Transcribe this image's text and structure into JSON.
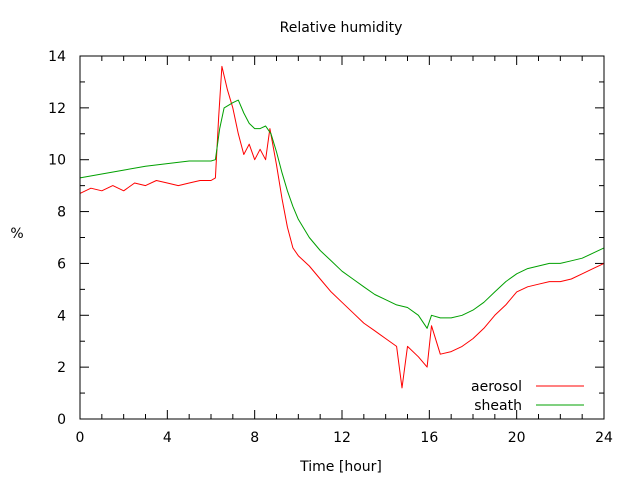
{
  "chart_data": {
    "type": "line",
    "title": "Relative humidity",
    "xlabel": "Time [hour]",
    "ylabel": "%",
    "xlim": [
      0,
      24
    ],
    "ylim": [
      0,
      14
    ],
    "xticks": [
      0,
      4,
      8,
      12,
      16,
      20,
      24
    ],
    "yticks": [
      0,
      2,
      4,
      6,
      8,
      10,
      12,
      14
    ],
    "grid": false,
    "legend_position": "bottom-right",
    "series": [
      {
        "name": "aerosol",
        "color": "#ff0000",
        "points": [
          [
            0.0,
            8.7
          ],
          [
            0.5,
            8.9
          ],
          [
            1.0,
            8.8
          ],
          [
            1.5,
            9.0
          ],
          [
            2.0,
            8.8
          ],
          [
            2.5,
            9.1
          ],
          [
            3.0,
            9.0
          ],
          [
            3.5,
            9.2
          ],
          [
            4.0,
            9.1
          ],
          [
            4.5,
            9.0
          ],
          [
            5.0,
            9.1
          ],
          [
            5.5,
            9.2
          ],
          [
            6.0,
            9.2
          ],
          [
            6.2,
            9.3
          ],
          [
            6.35,
            11.6
          ],
          [
            6.5,
            13.6
          ],
          [
            6.75,
            12.7
          ],
          [
            7.0,
            12.0
          ],
          [
            7.25,
            11.0
          ],
          [
            7.5,
            10.2
          ],
          [
            7.75,
            10.6
          ],
          [
            8.0,
            10.0
          ],
          [
            8.25,
            10.4
          ],
          [
            8.5,
            10.0
          ],
          [
            8.7,
            11.2
          ],
          [
            9.0,
            9.8
          ],
          [
            9.25,
            8.5
          ],
          [
            9.5,
            7.4
          ],
          [
            9.75,
            6.6
          ],
          [
            10.0,
            6.3
          ],
          [
            10.5,
            5.9
          ],
          [
            11.0,
            5.4
          ],
          [
            11.5,
            4.9
          ],
          [
            12.0,
            4.5
          ],
          [
            12.5,
            4.1
          ],
          [
            13.0,
            3.7
          ],
          [
            13.5,
            3.4
          ],
          [
            14.0,
            3.1
          ],
          [
            14.5,
            2.8
          ],
          [
            14.75,
            1.2
          ],
          [
            15.0,
            2.8
          ],
          [
            15.5,
            2.4
          ],
          [
            15.9,
            2.0
          ],
          [
            16.1,
            3.6
          ],
          [
            16.5,
            2.5
          ],
          [
            17.0,
            2.6
          ],
          [
            17.5,
            2.8
          ],
          [
            18.0,
            3.1
          ],
          [
            18.5,
            3.5
          ],
          [
            19.0,
            4.0
          ],
          [
            19.5,
            4.4
          ],
          [
            20.0,
            4.9
          ],
          [
            20.5,
            5.1
          ],
          [
            21.0,
            5.2
          ],
          [
            21.5,
            5.3
          ],
          [
            22.0,
            5.3
          ],
          [
            22.5,
            5.4
          ],
          [
            23.0,
            5.6
          ],
          [
            23.5,
            5.8
          ],
          [
            24.0,
            6.0
          ]
        ]
      },
      {
        "name": "sheath",
        "color": "#00a000",
        "points": [
          [
            0.0,
            9.3
          ],
          [
            1.0,
            9.45
          ],
          [
            2.0,
            9.6
          ],
          [
            3.0,
            9.75
          ],
          [
            4.0,
            9.85
          ],
          [
            5.0,
            9.95
          ],
          [
            6.0,
            9.95
          ],
          [
            6.2,
            10.0
          ],
          [
            6.4,
            11.2
          ],
          [
            6.6,
            12.0
          ],
          [
            7.0,
            12.2
          ],
          [
            7.25,
            12.3
          ],
          [
            7.5,
            11.8
          ],
          [
            7.75,
            11.4
          ],
          [
            8.0,
            11.2
          ],
          [
            8.25,
            11.2
          ],
          [
            8.5,
            11.3
          ],
          [
            8.75,
            11.0
          ],
          [
            9.0,
            10.3
          ],
          [
            9.25,
            9.5
          ],
          [
            9.5,
            8.8
          ],
          [
            9.75,
            8.2
          ],
          [
            10.0,
            7.7
          ],
          [
            10.5,
            7.0
          ],
          [
            11.0,
            6.5
          ],
          [
            11.5,
            6.1
          ],
          [
            12.0,
            5.7
          ],
          [
            12.5,
            5.4
          ],
          [
            13.0,
            5.1
          ],
          [
            13.5,
            4.8
          ],
          [
            14.0,
            4.6
          ],
          [
            14.5,
            4.4
          ],
          [
            15.0,
            4.3
          ],
          [
            15.5,
            4.0
          ],
          [
            15.9,
            3.5
          ],
          [
            16.1,
            4.0
          ],
          [
            16.5,
            3.9
          ],
          [
            17.0,
            3.9
          ],
          [
            17.5,
            4.0
          ],
          [
            18.0,
            4.2
          ],
          [
            18.5,
            4.5
          ],
          [
            19.0,
            4.9
          ],
          [
            19.5,
            5.3
          ],
          [
            20.0,
            5.6
          ],
          [
            20.5,
            5.8
          ],
          [
            21.0,
            5.9
          ],
          [
            21.5,
            6.0
          ],
          [
            22.0,
            6.0
          ],
          [
            22.5,
            6.1
          ],
          [
            23.0,
            6.2
          ],
          [
            23.5,
            6.4
          ],
          [
            24.0,
            6.6
          ]
        ]
      }
    ]
  }
}
